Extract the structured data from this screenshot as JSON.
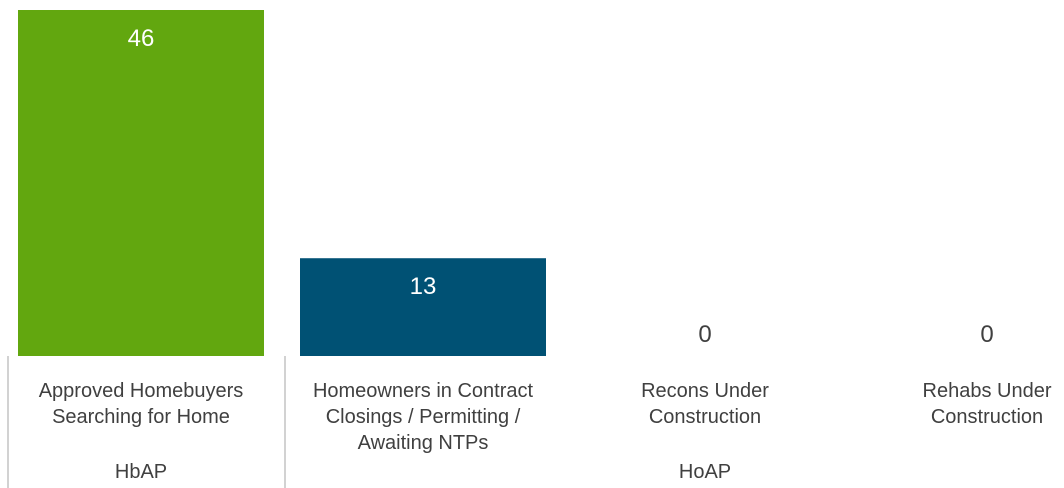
{
  "chart_data": {
    "type": "bar",
    "title": "",
    "xlabel": "",
    "ylabel": "",
    "ylim": [
      0,
      46
    ],
    "grid": false,
    "legend": "none",
    "categories": [
      {
        "lines": [
          "Approved Homebuyers",
          "Searching for Home"
        ],
        "value": 46,
        "color": "#62a70f"
      },
      {
        "lines": [
          "Homeowners in Contract",
          "Closings / Permitting /",
          "Awaiting NTPs"
        ],
        "value": 13,
        "color": "#005174"
      },
      {
        "lines": [
          "Recons Under",
          "Construction"
        ],
        "value": 0,
        "color": "#005174"
      },
      {
        "lines": [
          "Rehabs Under",
          "Construction"
        ],
        "value": 0,
        "color": "#005174"
      }
    ],
    "value_labels": [
      "46",
      "13",
      "0",
      "0"
    ],
    "groups": [
      {
        "label": "HbAP",
        "categories": [
          0
        ]
      },
      {
        "label": "HoAP",
        "categories": [
          1,
          2,
          3
        ]
      }
    ],
    "colors": {
      "label_text": "#404040",
      "inside_label_text": "#ffffff",
      "separator": "#a6a6a6"
    }
  }
}
